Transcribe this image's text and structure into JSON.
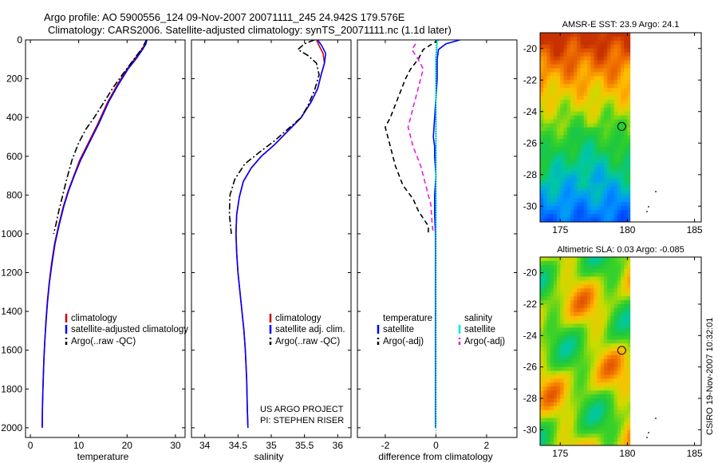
{
  "header": {
    "title_line1": "Argo profile: AO 5900556_124 09-Nov-2007 20071111_245 24.942S 179.576E",
    "title_line2": "Climatology: CARS2006. Satellite-adjusted climatology: synTS_20071111.nc (1.1d later)"
  },
  "side_label": "CSIRO 19-Nov-2007 10:32:01",
  "colors": {
    "climatology": "#cc0000",
    "satellite": "#0000ff",
    "argo": "#000000",
    "satellite_salinity": "#00e5e5",
    "argo_adj_salinity": "#e020e0",
    "map_land_white": "#ffffff"
  },
  "chart_data": [
    {
      "id": "temperature",
      "type": "line",
      "xlabel": "temperature",
      "ylabel": "",
      "xlim": [
        -1,
        32
      ],
      "ylim": [
        2050,
        0
      ],
      "xticks": [
        0,
        10,
        20,
        30
      ],
      "yticks": [
        0,
        200,
        400,
        600,
        800,
        1000,
        1200,
        1400,
        1600,
        1800,
        2000
      ],
      "legend": {
        "position": "lower-right",
        "entries": [
          "climatology",
          "satellite-adjusted climatology",
          "Argo(..raw -QC)"
        ]
      },
      "series": [
        {
          "name": "climatology",
          "color_key": "climatology",
          "dash": "solid",
          "x": [
            24.0,
            23.8,
            23.0,
            21.5,
            20.0,
            18.0,
            16.0,
            14.0,
            12.0,
            10.2,
            9.0,
            7.8,
            6.8,
            5.9,
            5.0,
            4.4,
            3.9,
            3.5,
            3.2,
            3.0,
            2.8,
            2.6,
            2.5,
            2.45
          ],
          "y": [
            0,
            20,
            50,
            100,
            150,
            230,
            320,
            430,
            530,
            620,
            700,
            780,
            860,
            950,
            1050,
            1150,
            1250,
            1350,
            1450,
            1550,
            1650,
            1800,
            1900,
            2000
          ]
        },
        {
          "name": "satellite-adjusted climatology",
          "color_key": "satellite",
          "dash": "solid",
          "x": [
            24.1,
            23.9,
            23.2,
            21.8,
            20.2,
            18.2,
            16.2,
            14.2,
            12.2,
            10.4,
            9.1,
            7.9,
            6.9,
            6.0,
            5.1,
            4.5,
            3.95,
            3.55,
            3.25,
            3.0,
            2.8,
            2.6,
            2.5,
            2.45
          ],
          "y": [
            0,
            20,
            50,
            100,
            150,
            230,
            320,
            430,
            530,
            620,
            700,
            780,
            860,
            950,
            1050,
            1150,
            1250,
            1350,
            1450,
            1550,
            1650,
            1800,
            1900,
            2000
          ]
        },
        {
          "name": "Argo(..raw -QC)",
          "color_key": "argo",
          "dash": "dashdot",
          "x": [
            24.0,
            23.2,
            22.0,
            20.5,
            19.0,
            17.0,
            15.0,
            13.2,
            11.5,
            10.0,
            8.6,
            7.5,
            6.6,
            5.9,
            5.3,
            4.8
          ],
          "y": [
            0,
            40,
            80,
            130,
            180,
            250,
            330,
            400,
            460,
            530,
            620,
            720,
            810,
            880,
            950,
            1000
          ]
        }
      ]
    },
    {
      "id": "salinity",
      "type": "line",
      "xlabel": "salinity",
      "ylabel": "",
      "xlim": [
        33.8,
        36.2
      ],
      "ylim": [
        2050,
        0
      ],
      "xticks": [
        34,
        34.5,
        35,
        35.5,
        36
      ],
      "yticks": [
        0,
        200,
        400,
        600,
        800,
        1000,
        1200,
        1400,
        1600,
        1800,
        2000
      ],
      "legend": {
        "position": "lower-right",
        "entries": [
          "climatology",
          "satellite adj. clim.",
          "Argo(..raw -QC)"
        ]
      },
      "annotation": [
        "US ARGO PROJECT",
        "PI: STEPHEN RISER"
      ],
      "series": [
        {
          "name": "climatology",
          "color_key": "climatology",
          "dash": "solid",
          "x": [
            35.68,
            35.72,
            35.78,
            35.8,
            35.75,
            35.7,
            35.6,
            35.45,
            35.25,
            35.05,
            34.85,
            34.7,
            34.58,
            34.52,
            34.48,
            34.47,
            34.48,
            34.5,
            34.53,
            34.56,
            34.59,
            34.61,
            34.63,
            34.64,
            34.65
          ],
          "y": [
            0,
            30,
            70,
            120,
            180,
            250,
            320,
            400,
            470,
            540,
            600,
            660,
            730,
            810,
            900,
            1000,
            1100,
            1200,
            1300,
            1400,
            1500,
            1600,
            1750,
            1900,
            2000
          ]
        },
        {
          "name": "satellite adj. clim.",
          "color_key": "satellite",
          "dash": "solid",
          "x": [
            35.7,
            35.76,
            35.82,
            35.8,
            35.75,
            35.7,
            35.6,
            35.45,
            35.25,
            35.05,
            34.85,
            34.7,
            34.58,
            34.52,
            34.48,
            34.47,
            34.48,
            34.5,
            34.53,
            34.56,
            34.59,
            34.61,
            34.63,
            34.64,
            34.65
          ],
          "y": [
            0,
            30,
            70,
            120,
            180,
            250,
            320,
            400,
            470,
            540,
            600,
            660,
            730,
            810,
            900,
            1000,
            1100,
            1200,
            1300,
            1400,
            1500,
            1600,
            1750,
            1900,
            2000
          ]
        },
        {
          "name": "Argo(..raw -QC)",
          "color_key": "argo",
          "dash": "dashdot",
          "x": [
            35.65,
            35.5,
            35.4,
            35.55,
            35.68,
            35.72,
            35.65,
            35.55,
            35.45,
            35.25,
            35.05,
            34.82,
            34.6,
            34.45,
            34.38,
            34.37,
            34.4
          ],
          "y": [
            0,
            20,
            50,
            80,
            120,
            180,
            260,
            340,
            400,
            460,
            520,
            580,
            640,
            720,
            800,
            900,
            1000
          ]
        }
      ]
    },
    {
      "id": "difference",
      "type": "line",
      "xlabel": "difference from climatology",
      "ylabel": "",
      "xlim": [
        -3.1,
        3.2
      ],
      "ylim": [
        2050,
        0
      ],
      "xticks": [
        -2,
        0,
        2
      ],
      "yticks": [
        0,
        200,
        400,
        600,
        800,
        1000,
        1200,
        1400,
        1600,
        1800,
        2000
      ],
      "legend": {
        "position": "lower-center",
        "column_headers": [
          "temperature",
          "salinity"
        ],
        "entries": [
          "satellite",
          "Argo(-adj)",
          "satellite",
          "Argo(-adj)"
        ]
      },
      "series": [
        {
          "name": "temperature satellite",
          "color_key": "satellite",
          "dash": "solid",
          "x": [
            0.95,
            0.4,
            0.1,
            0.05,
            0.05,
            0.0,
            -0.05,
            -0.1,
            -0.05,
            -0.05,
            0.0,
            -0.05,
            -0.05,
            -0.02,
            -0.02,
            -0.02,
            -0.02,
            -0.02,
            -0.02,
            -0.02
          ],
          "y": [
            0,
            20,
            50,
            100,
            200,
            300,
            400,
            500,
            550,
            600,
            700,
            800,
            900,
            1000,
            1200,
            1400,
            1600,
            1800,
            1900,
            2000
          ]
        },
        {
          "name": "temperature Argo(-adj)",
          "color_key": "argo",
          "dash": "dashed",
          "x": [
            0.1,
            -0.5,
            -0.7,
            -1.0,
            -1.2,
            -1.5,
            -1.8,
            -2.0,
            -1.8,
            -1.6,
            -1.3,
            -0.9,
            -0.7,
            -0.5,
            -0.3,
            -0.3
          ],
          "y": [
            0,
            50,
            100,
            150,
            200,
            300,
            400,
            450,
            550,
            650,
            750,
            820,
            880,
            920,
            960,
            1000
          ]
        },
        {
          "name": "salinity satellite",
          "color_key": "satellite_salinity",
          "dash": "solid",
          "x": [
            0.05,
            0.03,
            0.0,
            0.0,
            0.0,
            0.0,
            0.0,
            0.0,
            0.0,
            0.0,
            0.0,
            0.0,
            0.0,
            0.0
          ],
          "y": [
            0,
            50,
            100,
            200,
            300,
            400,
            500,
            600,
            800,
            1000,
            1300,
            1600,
            1800,
            2000
          ]
        },
        {
          "name": "salinity Argo(-adj)",
          "color_key": "argo_adj_salinity",
          "dash": "dashed",
          "x": [
            -0.8,
            -0.95,
            -0.7,
            -0.5,
            -0.9,
            -1.1,
            -0.9,
            -0.6,
            -0.4,
            -0.2,
            -0.15,
            -0.1
          ],
          "y": [
            20,
            50,
            100,
            150,
            350,
            450,
            550,
            650,
            750,
            850,
            950,
            1000
          ]
        }
      ]
    },
    {
      "id": "sst_map",
      "type": "heatmap",
      "title": "AMSR-E SST: 23.9 Argo: 24.1",
      "xlim": [
        173.5,
        185.5
      ],
      "ylim": [
        -31,
        -19
      ],
      "xticks": [
        175,
        180,
        185
      ],
      "yticks": [
        -20,
        -22,
        -24,
        -26,
        -28,
        -30
      ],
      "data_lon_range": [
        173.5,
        180.2
      ],
      "marker": {
        "lon": 179.576,
        "lat": -24.942
      }
    },
    {
      "id": "sla_map",
      "type": "heatmap",
      "title": "Altimetric SLA: 0.03 Argo: -0.085",
      "xlim": [
        173.5,
        185.5
      ],
      "ylim": [
        -31,
        -19
      ],
      "xticks": [
        175,
        180,
        185
      ],
      "yticks": [
        -20,
        -22,
        -24,
        -26,
        -28,
        -30
      ],
      "data_lon_range": [
        173.5,
        180.2
      ],
      "marker": {
        "lon": 179.576,
        "lat": -24.942
      }
    }
  ]
}
